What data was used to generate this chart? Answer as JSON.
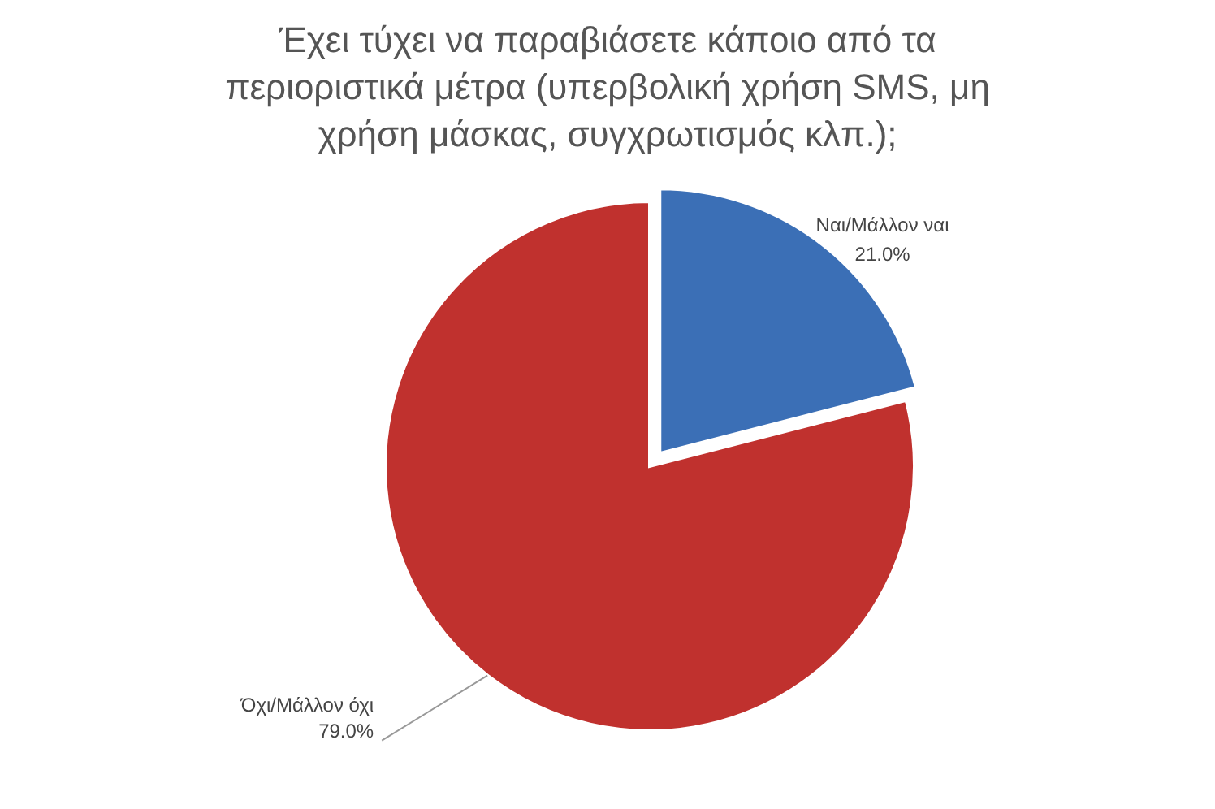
{
  "chart_data": {
    "type": "pie",
    "title": "Έχει τύχει να παραβιάσετε κάποιο από τα περιοριστικά μέτρα (υπερβολική χρήση SMS, μη χρήση μάσκας, συγχρωτισμός κλπ.);",
    "categories": [
      "Ναι/Μάλλον ναι",
      "Όχι/Μάλλον όχι"
    ],
    "values": [
      21,
      79
    ],
    "colors": [
      "#3b6fb6",
      "#c0312e"
    ],
    "value_labels": [
      "21.0%",
      "79.0%"
    ],
    "legend": false
  }
}
